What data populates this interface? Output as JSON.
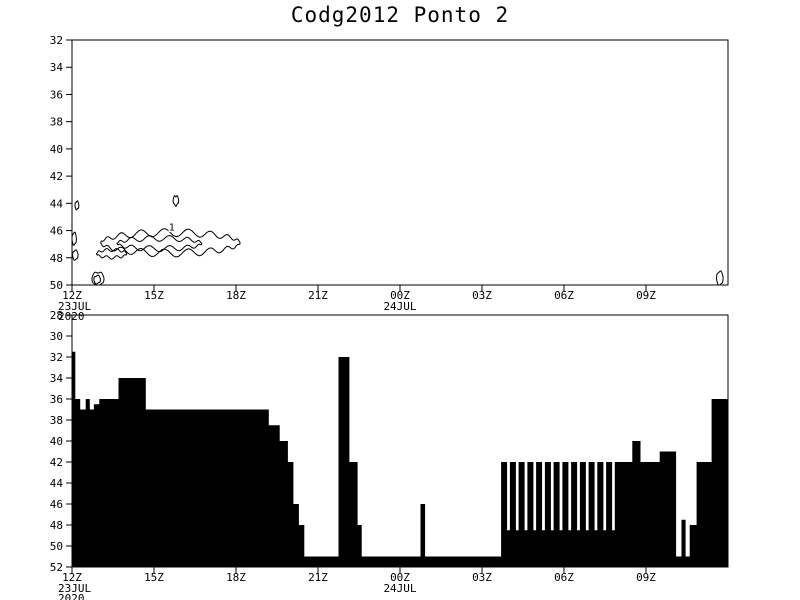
{
  "title": "Codg2012 Ponto 2",
  "colors": {
    "foreground": "#000000",
    "background": "#ffffff"
  },
  "x_axis": {
    "tick_labels": [
      "12Z",
      "15Z",
      "18Z",
      "21Z",
      "00Z",
      "03Z",
      "06Z",
      "09Z"
    ],
    "tick_hours": [
      0,
      3,
      6,
      9,
      12,
      15,
      18,
      21
    ],
    "hour_range": [
      0,
      24
    ],
    "left_date": [
      "23JUL",
      "2020"
    ],
    "midnight_date": "24JUL",
    "midnight_hour": 12
  },
  "chart_data": [
    {
      "type": "contour",
      "panel": "top",
      "title": "",
      "grid": "off",
      "legend": "none",
      "ylim": [
        32,
        50
      ],
      "y_increases_downward": true,
      "y_ticks": [
        32,
        34,
        36,
        38,
        40,
        42,
        44,
        46,
        48,
        50
      ],
      "contour_level_labels": [
        {
          "text": "1",
          "hour": 3.65,
          "value": 46.0
        }
      ],
      "contours": [
        {
          "cx": 3.6,
          "cy": 46.9,
          "rx": 2.55,
          "ry": 0.75,
          "waves": 18,
          "amp": 0.3
        },
        {
          "cx": 3.2,
          "cy": 46.95,
          "rx": 1.55,
          "ry": 0.38,
          "waves": 13,
          "amp": 0.22
        },
        {
          "cx": 1.45,
          "cy": 47.7,
          "rx": 0.55,
          "ry": 0.28,
          "waves": 9,
          "amp": 0.12
        },
        {
          "cx": 0.18,
          "cy": 44.15,
          "rx": 0.07,
          "ry": 0.3,
          "waves": 4,
          "amp": 0.05
        },
        {
          "cx": 3.8,
          "cy": 43.8,
          "rx": 0.1,
          "ry": 0.35,
          "waves": 5,
          "amp": 0.07
        },
        {
          "cx": 0.08,
          "cy": 46.6,
          "rx": 0.08,
          "ry": 0.45,
          "waves": 4,
          "amp": 0.06
        },
        {
          "cx": 0.12,
          "cy": 47.8,
          "rx": 0.1,
          "ry": 0.35,
          "waves": 4,
          "amp": 0.05
        },
        {
          "cx": 0.95,
          "cy": 49.55,
          "rx": 0.22,
          "ry": 0.5,
          "waves": 5,
          "amp": 0.07
        },
        {
          "cx": 0.92,
          "cy": 49.6,
          "rx": 0.12,
          "ry": 0.3,
          "waves": 4,
          "amp": 0.05
        },
        {
          "cx": 23.7,
          "cy": 49.5,
          "rx": 0.12,
          "ry": 0.5,
          "waves": 4,
          "amp": 0.06
        }
      ]
    },
    {
      "type": "area",
      "panel": "bottom",
      "title": "",
      "grid": "off",
      "legend": "none",
      "ylim": [
        28,
        52
      ],
      "y_increases_downward": true,
      "y_ticks": [
        28,
        30,
        32,
        34,
        36,
        38,
        40,
        42,
        44,
        46,
        48,
        50,
        52
      ],
      "baseline_value": 52,
      "end_hour": 24,
      "steps": [
        [
          0.0,
          31.5
        ],
        [
          0.12,
          36
        ],
        [
          0.3,
          37
        ],
        [
          0.5,
          36
        ],
        [
          0.65,
          37
        ],
        [
          0.8,
          36.5
        ],
        [
          1.0,
          36
        ],
        [
          1.7,
          34
        ],
        [
          2.7,
          37
        ],
        [
          7.2,
          38.5
        ],
        [
          7.6,
          40
        ],
        [
          7.9,
          42
        ],
        [
          8.1,
          46
        ],
        [
          8.3,
          48
        ],
        [
          8.5,
          51
        ],
        [
          9.75,
          32
        ],
        [
          10.15,
          42
        ],
        [
          10.45,
          48
        ],
        [
          10.6,
          51
        ],
        [
          12.75,
          46
        ],
        [
          12.92,
          51
        ],
        [
          15.7,
          42
        ],
        [
          15.92,
          48.5
        ],
        [
          16.02,
          42
        ],
        [
          16.24,
          48.5
        ],
        [
          16.34,
          42
        ],
        [
          16.56,
          48.5
        ],
        [
          16.66,
          42
        ],
        [
          16.88,
          48.5
        ],
        [
          16.98,
          42
        ],
        [
          17.2,
          48.5
        ],
        [
          17.3,
          42
        ],
        [
          17.52,
          48.5
        ],
        [
          17.62,
          42
        ],
        [
          17.84,
          48.5
        ],
        [
          17.94,
          42
        ],
        [
          18.16,
          48.5
        ],
        [
          18.26,
          42
        ],
        [
          18.48,
          48.5
        ],
        [
          18.58,
          42
        ],
        [
          18.8,
          48.5
        ],
        [
          18.9,
          42
        ],
        [
          19.12,
          48.5
        ],
        [
          19.22,
          42
        ],
        [
          19.44,
          48.5
        ],
        [
          19.54,
          42
        ],
        [
          19.76,
          48.5
        ],
        [
          19.86,
          42
        ],
        [
          20.5,
          40
        ],
        [
          20.8,
          42
        ],
        [
          21.5,
          41
        ],
        [
          22.1,
          51
        ],
        [
          22.3,
          47.5
        ],
        [
          22.45,
          51
        ],
        [
          22.6,
          48
        ],
        [
          22.85,
          42
        ],
        [
          23.4,
          36
        ]
      ]
    }
  ]
}
